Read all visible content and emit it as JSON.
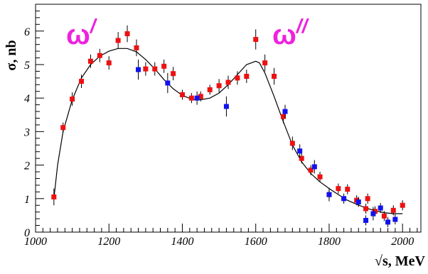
{
  "chart_data": {
    "type": "scatter",
    "title": "",
    "xlabel": "√s, MeV",
    "ylabel": "σ, nb",
    "xlim": [
      1000,
      2050
    ],
    "ylim": [
      0,
      6.8
    ],
    "x_ticks": [
      "1000",
      "1200",
      "1400",
      "1600",
      "1800",
      "2000"
    ],
    "y_ticks": [
      "0",
      "1",
      "2",
      "3",
      "4",
      "5",
      "6"
    ],
    "grid": false,
    "annotations": [
      {
        "main": "ω",
        "sup": "/"
      },
      {
        "main": "ω",
        "sup": "//"
      }
    ],
    "colors": {
      "red_points": "#ee1111",
      "blue_points": "#1111ee",
      "curve": "#000000",
      "annotation": "#ee22dd"
    },
    "series": [
      {
        "color": "red",
        "points": [
          [
            1050,
            1.05,
            0.25
          ],
          [
            1075,
            3.12,
            0.15
          ],
          [
            1100,
            3.97,
            0.2
          ],
          [
            1125,
            4.5,
            0.2
          ],
          [
            1150,
            5.1,
            0.2
          ],
          [
            1175,
            5.27,
            0.2
          ],
          [
            1200,
            5.05,
            0.2
          ],
          [
            1225,
            5.72,
            0.25
          ],
          [
            1250,
            5.92,
            0.25
          ],
          [
            1275,
            5.5,
            0.25
          ],
          [
            1300,
            4.87,
            0.2
          ],
          [
            1325,
            4.87,
            0.2
          ],
          [
            1350,
            4.95,
            0.2
          ],
          [
            1375,
            4.73,
            0.2
          ],
          [
            1400,
            4.1,
            0.15
          ],
          [
            1425,
            4.0,
            0.15
          ],
          [
            1450,
            4.05,
            0.15
          ],
          [
            1475,
            4.25,
            0.15
          ],
          [
            1500,
            4.37,
            0.2
          ],
          [
            1525,
            4.47,
            0.2
          ],
          [
            1550,
            4.6,
            0.2
          ],
          [
            1575,
            4.65,
            0.2
          ],
          [
            1600,
            5.75,
            0.3
          ],
          [
            1625,
            5.05,
            0.25
          ],
          [
            1650,
            4.65,
            0.25
          ],
          [
            1675,
            3.45,
            0.2
          ],
          [
            1700,
            2.65,
            0.2
          ],
          [
            1725,
            2.2,
            0.15
          ],
          [
            1750,
            1.85,
            0.15
          ],
          [
            1775,
            1.65,
            0.15
          ],
          [
            1800,
            1.12,
            0.15
          ],
          [
            1825,
            1.3,
            0.15
          ],
          [
            1850,
            1.28,
            0.15
          ],
          [
            1875,
            0.95,
            0.15
          ],
          [
            1900,
            0.7,
            0.15
          ],
          [
            1925,
            0.62,
            0.15
          ],
          [
            1950,
            0.48,
            0.15
          ],
          [
            1975,
            0.65,
            0.15
          ],
          [
            2000,
            0.8,
            0.15
          ],
          [
            1905,
            1.0,
            0.15
          ]
        ]
      },
      {
        "color": "blue",
        "points": [
          [
            1280,
            4.85,
            0.3
          ],
          [
            1360,
            4.45,
            0.3
          ],
          [
            1440,
            4.0,
            0.2
          ],
          [
            1520,
            3.75,
            0.3
          ],
          [
            1680,
            3.6,
            0.2
          ],
          [
            1720,
            2.42,
            0.2
          ],
          [
            1760,
            1.95,
            0.2
          ],
          [
            1800,
            1.12,
            0.2
          ],
          [
            1840,
            1.0,
            0.15
          ],
          [
            1880,
            0.9,
            0.15
          ],
          [
            1900,
            0.35,
            0.15
          ],
          [
            1920,
            0.55,
            0.2
          ],
          [
            1940,
            0.72,
            0.15
          ],
          [
            1960,
            0.3,
            0.15
          ],
          [
            1980,
            0.38,
            0.15
          ]
        ]
      }
    ],
    "fit_curve": {
      "x": [
        1050,
        1060,
        1075,
        1100,
        1125,
        1150,
        1175,
        1200,
        1225,
        1250,
        1275,
        1300,
        1325,
        1350,
        1375,
        1400,
        1425,
        1450,
        1475,
        1500,
        1525,
        1550,
        1575,
        1600,
        1610,
        1625,
        1650,
        1675,
        1700,
        1725,
        1750,
        1775,
        1800,
        1825,
        1850,
        1875,
        1900,
        1925,
        1950,
        1975,
        2000
      ],
      "y": [
        1.0,
        2.0,
        3.0,
        3.95,
        4.6,
        5.0,
        5.25,
        5.4,
        5.48,
        5.48,
        5.38,
        5.15,
        4.87,
        4.55,
        4.28,
        4.08,
        3.97,
        3.95,
        4.0,
        4.15,
        4.4,
        4.7,
        5.0,
        5.1,
        5.05,
        4.75,
        4.05,
        3.3,
        2.6,
        2.1,
        1.75,
        1.5,
        1.3,
        1.12,
        0.95,
        0.83,
        0.72,
        0.64,
        0.58,
        0.55,
        0.55
      ]
    }
  }
}
